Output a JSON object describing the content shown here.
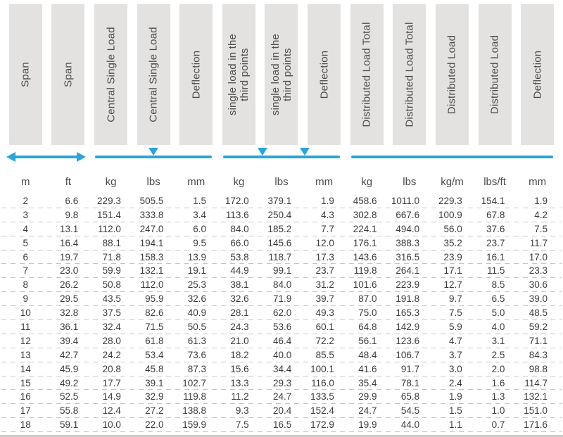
{
  "colors": {
    "accent": "#29a4dc",
    "header_box": "#e4e2e0",
    "header_text": "#4d4d4d",
    "data_text": "#3c3c3c",
    "row_separator": "#c8c6c4",
    "bottom_band": "#cfcdca"
  },
  "table": {
    "headers": [
      "Span",
      "Span",
      "Central Single Load",
      "Central Single Load",
      "Deflection",
      "single load in the\nthird points",
      "single load in the\nthird points",
      "Deflection",
      "Distributed Load Total",
      "Distributed Load Total",
      "Distributed Load",
      "Distributed Load",
      "Deflection"
    ],
    "units": [
      "m",
      "ft",
      "kg",
      "lbs",
      "mm",
      "kg",
      "lbs",
      "mm",
      "kg",
      "lbs",
      "kg/m",
      "lbs/ft",
      "mm"
    ],
    "beam_diagrams": [
      {
        "name": "span-extent-arrow",
        "type": "double_arrow",
        "col_start": 1,
        "col_span": 2
      },
      {
        "name": "central-single-load-diagram",
        "type": "beam_one_load",
        "col_start": 3,
        "col_span": 3
      },
      {
        "name": "third-point-loads-diagram",
        "type": "beam_two_loads",
        "col_start": 6,
        "col_span": 3
      },
      {
        "name": "distributed-load-diagram",
        "type": "beam_line",
        "col_start": 9,
        "col_span": 5
      }
    ],
    "rows": [
      [
        "2",
        "6.6",
        "229.3",
        "505.5",
        "1.5",
        "172.0",
        "379.1",
        "1.9",
        "458.6",
        "1011.0",
        "229.3",
        "154.1",
        "1.9"
      ],
      [
        "3",
        "9.8",
        "151.4",
        "333.8",
        "3.4",
        "113.6",
        "250.4",
        "4.3",
        "302.8",
        "667.6",
        "100.9",
        "67.8",
        "4.2"
      ],
      [
        "4",
        "13.1",
        "112.0",
        "247.0",
        "6.0",
        "84.0",
        "185.2",
        "7.7",
        "224.1",
        "494.0",
        "56.0",
        "37.6",
        "7.5"
      ],
      [
        "5",
        "16.4",
        "88.1",
        "194.1",
        "9.5",
        "66.0",
        "145.6",
        "12.0",
        "176.1",
        "388.3",
        "35.2",
        "23.7",
        "11.7"
      ],
      [
        "6",
        "19.7",
        "71.8",
        "158.3",
        "13.9",
        "53.8",
        "118.7",
        "17.3",
        "143.6",
        "316.5",
        "23.9",
        "16.1",
        "17.0"
      ],
      [
        "7",
        "23.0",
        "59.9",
        "132.1",
        "19.1",
        "44.9",
        "99.1",
        "23.7",
        "119.8",
        "264.1",
        "17.1",
        "11.5",
        "23.3"
      ],
      [
        "8",
        "26.2",
        "50.8",
        "112.0",
        "25.3",
        "38.1",
        "84.0",
        "31.2",
        "101.6",
        "223.9",
        "12.7",
        "8.5",
        "30.6"
      ],
      [
        "9",
        "29.5",
        "43.5",
        "95.9",
        "32.6",
        "32.6",
        "71.9",
        "39.7",
        "87.0",
        "191.8",
        "9.7",
        "6.5",
        "39.0"
      ],
      [
        "10",
        "32.8",
        "37.5",
        "82.6",
        "40.9",
        "28.1",
        "62.0",
        "49.3",
        "75.0",
        "165.3",
        "7.5",
        "5.0",
        "48.5"
      ],
      [
        "11",
        "36.1",
        "32.4",
        "71.5",
        "50.5",
        "24.3",
        "53.6",
        "60.1",
        "64.8",
        "142.9",
        "5.9",
        "4.0",
        "59.2"
      ],
      [
        "12",
        "39.4",
        "28.0",
        "61.8",
        "61.3",
        "21.0",
        "46.4",
        "72.2",
        "56.1",
        "123.6",
        "4.7",
        "3.1",
        "71.1"
      ],
      [
        "13",
        "42.7",
        "24.2",
        "53.4",
        "73.6",
        "18.2",
        "40.0",
        "85.5",
        "48.4",
        "106.7",
        "3.7",
        "2.5",
        "84.3"
      ],
      [
        "14",
        "45.9",
        "20.8",
        "45.8",
        "87.3",
        "15.6",
        "34.4",
        "100.1",
        "41.6",
        "91.7",
        "3.0",
        "2.0",
        "98.8"
      ],
      [
        "15",
        "49.2",
        "17.7",
        "39.1",
        "102.7",
        "13.3",
        "29.3",
        "116.0",
        "35.4",
        "78.1",
        "2.4",
        "1.6",
        "114.7"
      ],
      [
        "16",
        "52.5",
        "14.9",
        "32.9",
        "119.8",
        "11.2",
        "24.7",
        "133.5",
        "29.9",
        "65.8",
        "1.9",
        "1.3",
        "132.1"
      ],
      [
        "17",
        "55.8",
        "12.4",
        "27.2",
        "138.8",
        "9.3",
        "20.4",
        "152.4",
        "24.7",
        "54.5",
        "1.5",
        "1.0",
        "151.0"
      ],
      [
        "18",
        "59.1",
        "10.0",
        "22.0",
        "159.9",
        "7.5",
        "16.5",
        "172.9",
        "19.9",
        "44.0",
        "1.1",
        "0.7",
        "171.6"
      ]
    ]
  }
}
